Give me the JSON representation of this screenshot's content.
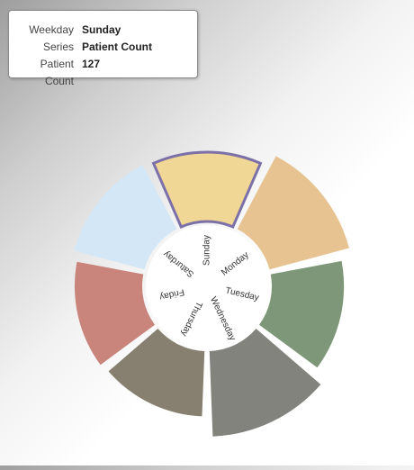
{
  "tooltip": {
    "rows": [
      {
        "label": "Weekday",
        "value": "Sunday"
      },
      {
        "label": "Series",
        "value": "Patient Count"
      },
      {
        "label": "Patient Count",
        "value": "127"
      }
    ]
  },
  "chart_data": {
    "type": "polar-bar",
    "series": [
      {
        "name": "Patient Count",
        "values": [
          127,
          150,
          132,
          155,
          120,
          124,
          133
        ]
      }
    ],
    "categories": [
      "Sunday",
      "Monday",
      "Tuesday",
      "Wednesday",
      "Thursday",
      "Friday",
      "Saturday"
    ],
    "highlighted_category": "Sunday",
    "colors": [
      "#f1d795",
      "#e6c391",
      "#7d9778",
      "#83837d",
      "#877f70",
      "#c9847c",
      "#d3e7f6"
    ],
    "highlight_stroke": "#7c70a8",
    "grid": false,
    "legend": "none"
  }
}
